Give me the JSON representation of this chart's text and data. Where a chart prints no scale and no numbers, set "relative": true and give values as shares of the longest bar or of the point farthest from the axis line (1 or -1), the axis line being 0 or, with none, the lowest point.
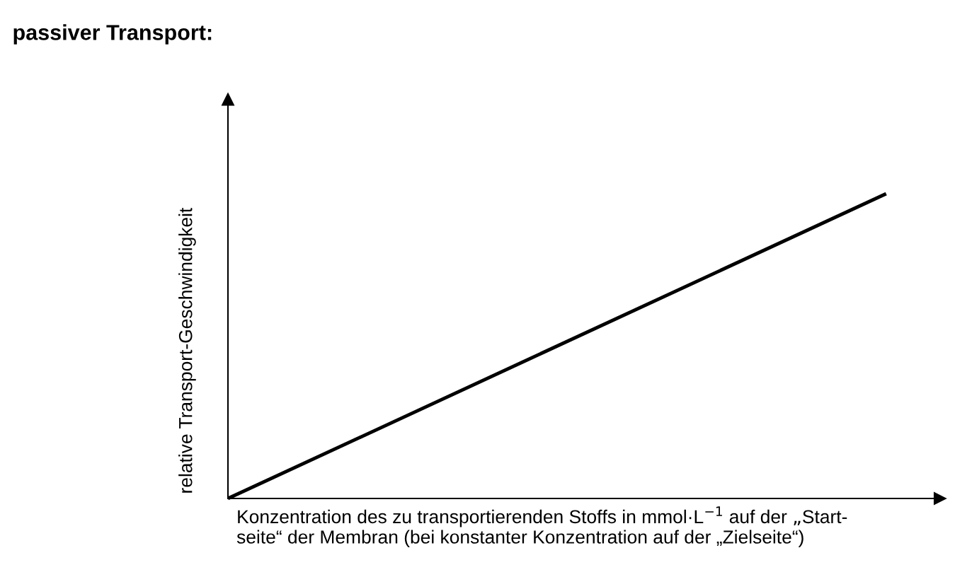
{
  "chart_data": {
    "type": "line",
    "title": "passiver Transport:",
    "xlabel": "Konzentration des zu transportierenden Stoffs in mmol·L$^{−1}$ auf der „Start-\nseite“ der Membran (bei konstanter Konzentration auf der „Zielseite“)",
    "ylabel": "relative Transport-Geschwindigkeit",
    "relative": true,
    "categories": [
      null,
      null
    ],
    "series": [
      {
        "color": "#000000",
        "values": [
          0,
          1
        ]
      }
    ],
    "legend": false,
    "marker": "none",
    "line_style": "solid",
    "tick_labels": false
  }
}
